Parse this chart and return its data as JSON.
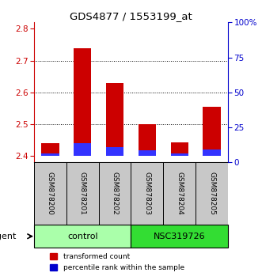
{
  "title": "GDS4877 / 1553199_at",
  "samples": [
    "GSM878200",
    "GSM878201",
    "GSM878202",
    "GSM878203",
    "GSM878204",
    "GSM878205"
  ],
  "red_values": [
    2.44,
    2.74,
    2.63,
    2.5,
    2.442,
    2.555
  ],
  "blue_values": [
    2.408,
    2.44,
    2.428,
    2.418,
    2.408,
    2.42
  ],
  "base_value": 2.4,
  "ylim": [
    2.38,
    2.82
  ],
  "yticks": [
    2.4,
    2.5,
    2.6,
    2.7,
    2.8
  ],
  "right_yticks_pct": [
    0,
    25,
    50,
    75,
    100
  ],
  "right_yticks_labels": [
    "0",
    "25",
    "50",
    "75",
    "100%"
  ],
  "groups": [
    {
      "label": "control",
      "start": 0,
      "end": 3,
      "color": "#AAFFAA"
    },
    {
      "label": "NSC319726",
      "start": 3,
      "end": 6,
      "color": "#33DD33"
    }
  ],
  "agent_label": "agent",
  "legend_items": [
    {
      "label": "transformed count",
      "color": "#CC0000"
    },
    {
      "label": "percentile rank within the sample",
      "color": "#0000CC"
    }
  ],
  "bar_width": 0.55,
  "red_color": "#CC0000",
  "blue_color": "#3333FF",
  "left_axis_color": "#CC0000",
  "right_axis_color": "#0000CC",
  "bg_color": "#FFFFFF",
  "sample_bg": "#C8C8C8"
}
